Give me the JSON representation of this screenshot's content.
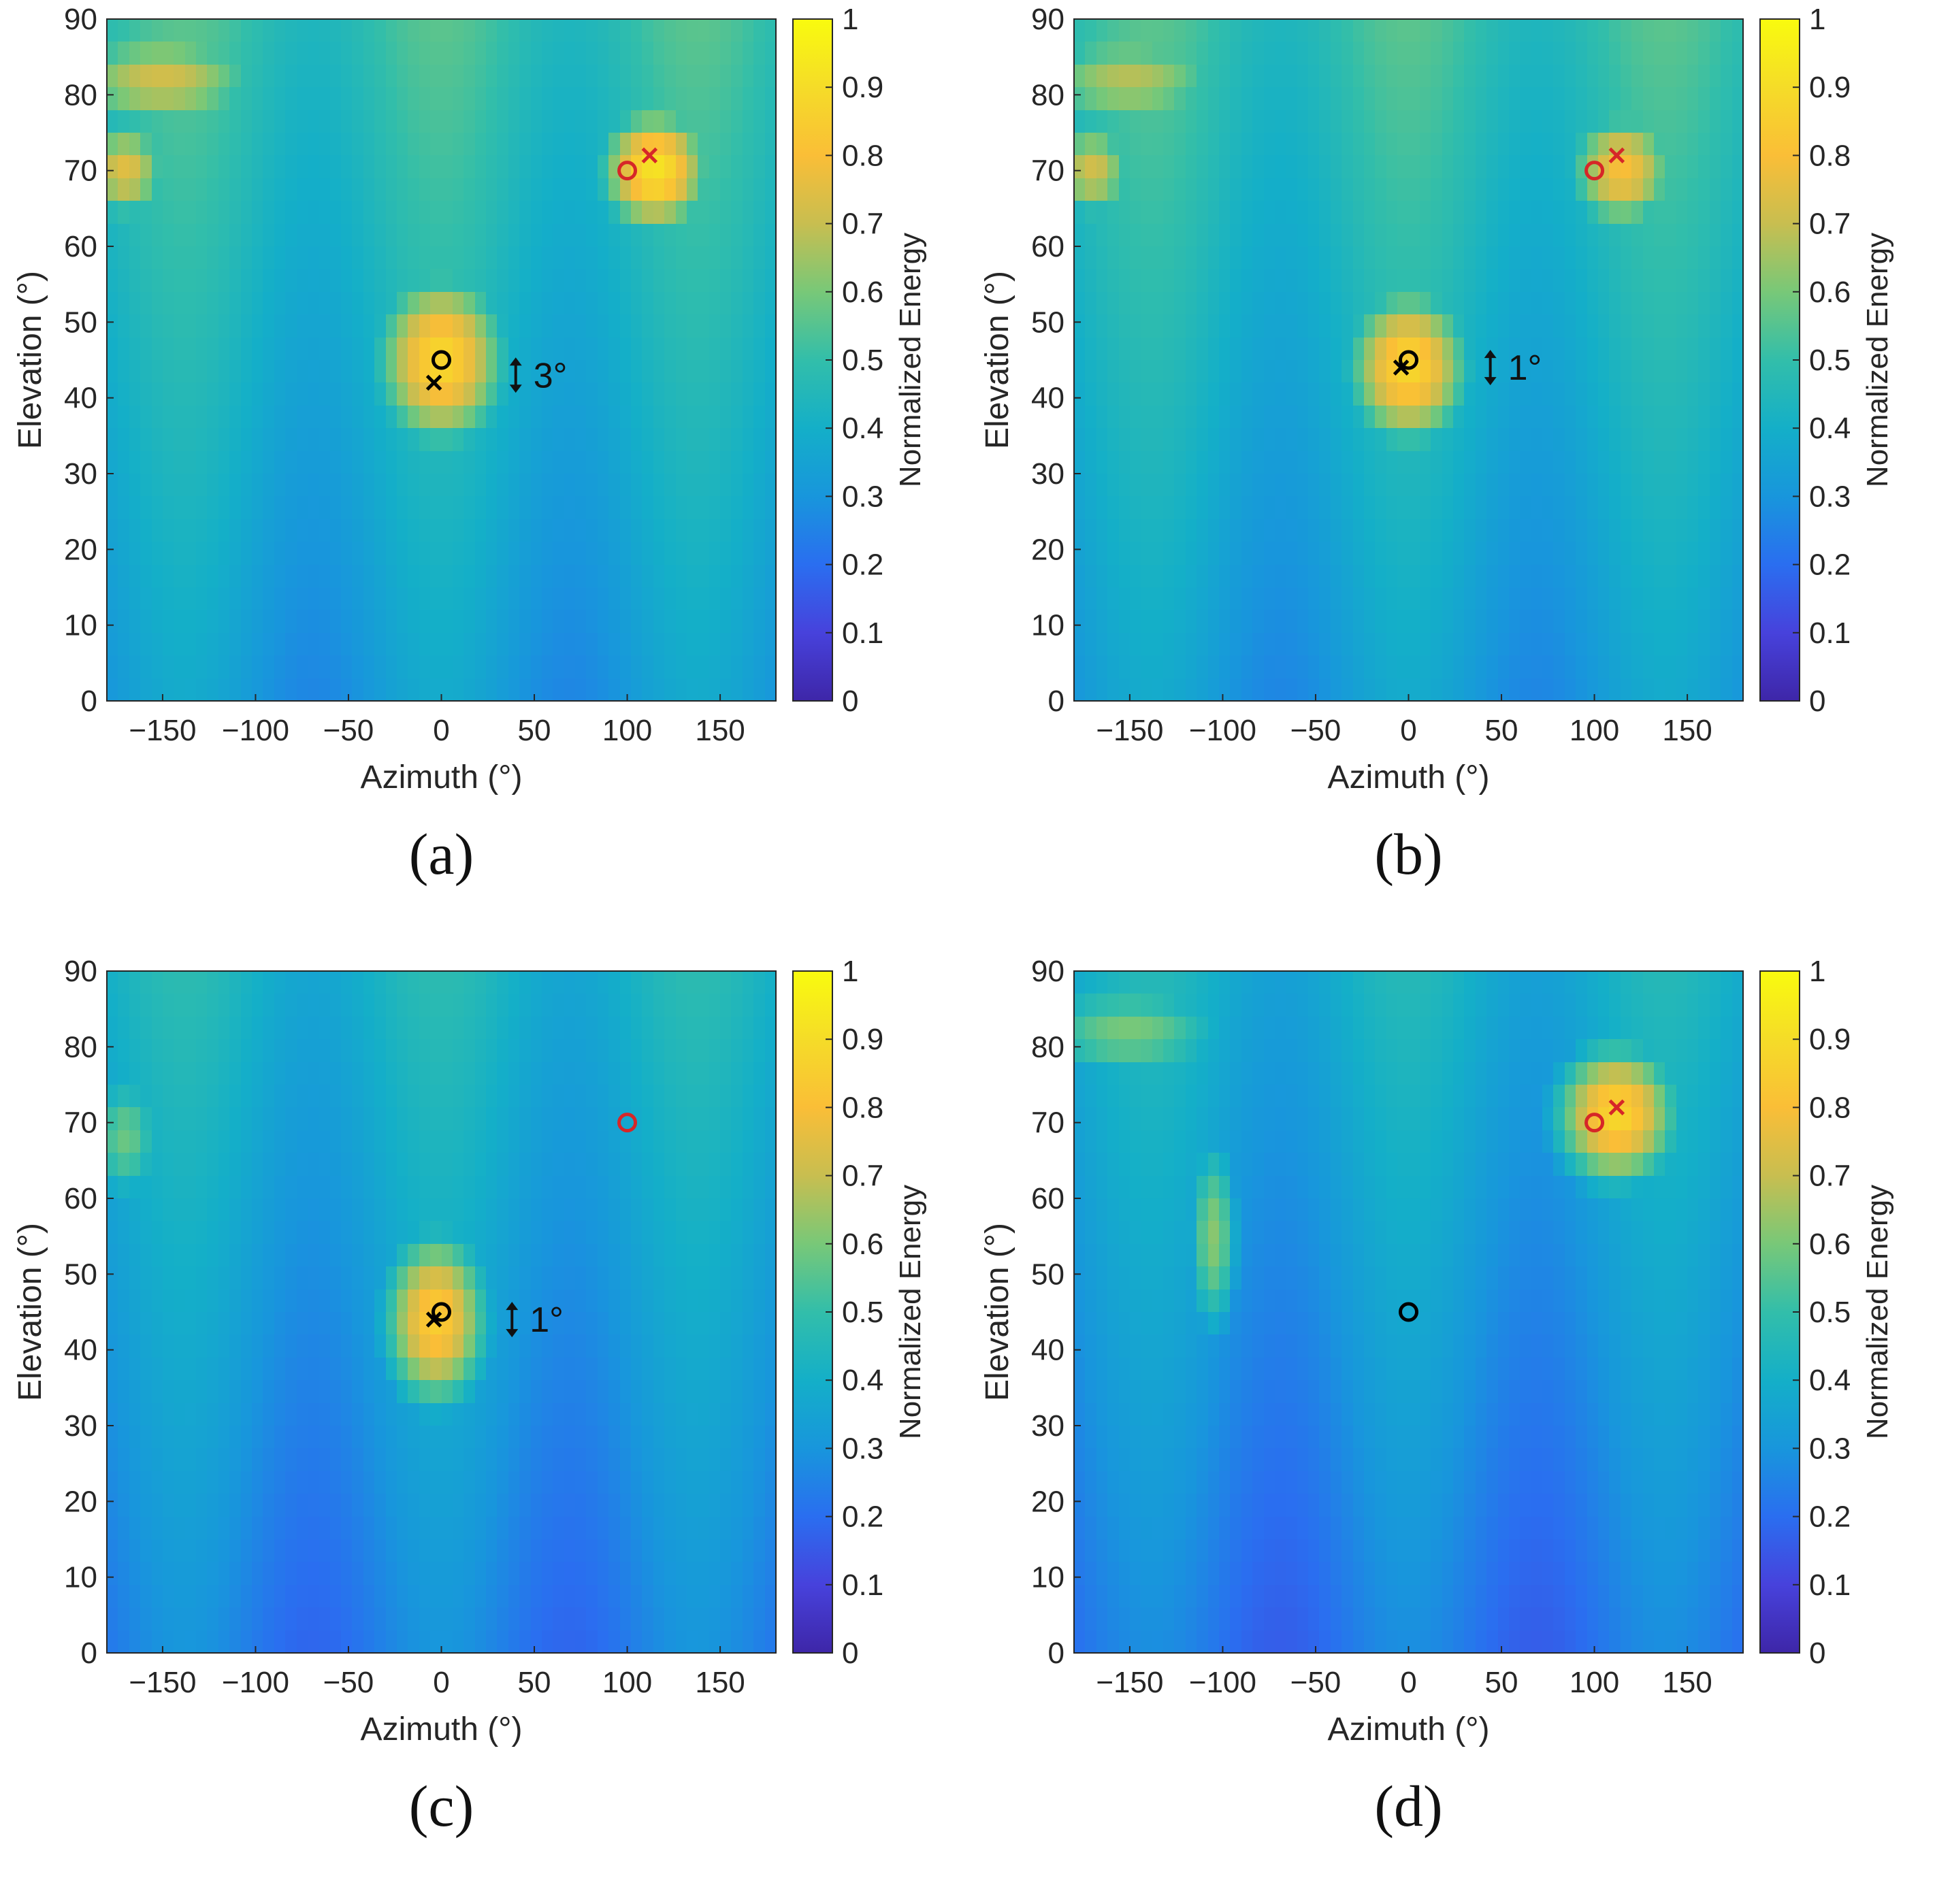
{
  "chart_data": [
    {
      "type": "heatmap",
      "panel": "a",
      "caption": "(a)",
      "xlabel": "Azimuth (°)",
      "ylabel": "Elevation (°)",
      "xlim": [
        -180,
        180
      ],
      "ylim": [
        0,
        90
      ],
      "xticks": [
        -150,
        -100,
        -50,
        0,
        50,
        100,
        150
      ],
      "yticks": [
        0,
        10,
        20,
        30,
        40,
        50,
        60,
        70,
        80,
        90
      ],
      "colorbar": {
        "label": "Normalized Energy",
        "range": [
          0,
          1
        ],
        "ticks": [
          0,
          0.1,
          0.2,
          0.3,
          0.4,
          0.5,
          0.6,
          0.7,
          0.8,
          0.9,
          1
        ]
      },
      "background_level": 0.5,
      "hotspots": [
        {
          "az": 0,
          "el": 45,
          "amp": 0.88,
          "saz": 30,
          "sel": 10
        },
        {
          "az": 115,
          "el": 70,
          "amp": 0.92,
          "saz": 25,
          "sel": 7
        },
        {
          "az": -170,
          "el": 70,
          "amp": 0.75,
          "saz": 20,
          "sel": 6
        },
        {
          "az": -150,
          "el": 82,
          "amp": 0.72,
          "saz": 50,
          "sel": 6
        }
      ],
      "markers": [
        {
          "shape": "circle",
          "color": "#000000",
          "az": 0,
          "el": 45
        },
        {
          "shape": "cross",
          "color": "#000000",
          "az": -4,
          "el": 42
        },
        {
          "shape": "circle",
          "color": "#d62728",
          "az": 100,
          "el": 70
        },
        {
          "shape": "cross",
          "color": "#d62728",
          "az": 112,
          "el": 72
        }
      ],
      "annotation": {
        "text": "3°",
        "az": 40,
        "el": 43
      }
    },
    {
      "type": "heatmap",
      "panel": "b",
      "caption": "(b)",
      "xlabel": "Azimuth (°)",
      "ylabel": "Elevation (°)",
      "xlim": [
        -180,
        180
      ],
      "ylim": [
        0,
        90
      ],
      "xticks": [
        -150,
        -100,
        -50,
        0,
        50,
        100,
        150
      ],
      "yticks": [
        0,
        10,
        20,
        30,
        40,
        50,
        60,
        70,
        80,
        90
      ],
      "colorbar": {
        "label": "Normalized Energy",
        "range": [
          0,
          1
        ],
        "ticks": [
          0,
          0.1,
          0.2,
          0.3,
          0.4,
          0.5,
          0.6,
          0.7,
          0.8,
          0.9,
          1
        ]
      },
      "background_level": 0.5,
      "hotspots": [
        {
          "az": 0,
          "el": 44,
          "amp": 0.88,
          "saz": 28,
          "sel": 9
        },
        {
          "az": 115,
          "el": 70,
          "amp": 0.8,
          "saz": 25,
          "sel": 7
        },
        {
          "az": -170,
          "el": 70,
          "amp": 0.72,
          "saz": 20,
          "sel": 6
        },
        {
          "az": -150,
          "el": 82,
          "amp": 0.68,
          "saz": 50,
          "sel": 6
        }
      ],
      "markers": [
        {
          "shape": "circle",
          "color": "#000000",
          "az": 0,
          "el": 45
        },
        {
          "shape": "cross",
          "color": "#000000",
          "az": -4,
          "el": 44
        },
        {
          "shape": "circle",
          "color": "#d62728",
          "az": 100,
          "el": 70
        },
        {
          "shape": "cross",
          "color": "#d62728",
          "az": 112,
          "el": 72
        }
      ],
      "annotation": {
        "text": "1°",
        "az": 44,
        "el": 44
      }
    },
    {
      "type": "heatmap",
      "panel": "c",
      "caption": "(c)",
      "xlabel": "Azimuth (°)",
      "ylabel": "Elevation (°)",
      "xlim": [
        -180,
        180
      ],
      "ylim": [
        0,
        90
      ],
      "xticks": [
        -150,
        -100,
        -50,
        0,
        50,
        100,
        150
      ],
      "yticks": [
        0,
        10,
        20,
        30,
        40,
        50,
        60,
        70,
        80,
        90
      ],
      "colorbar": {
        "label": "Normalized Energy",
        "range": [
          0,
          1
        ],
        "ticks": [
          0,
          0.1,
          0.2,
          0.3,
          0.4,
          0.5,
          0.6,
          0.7,
          0.8,
          0.9,
          1
        ]
      },
      "background_level": 0.42,
      "hotspots": [
        {
          "az": -3,
          "el": 44,
          "amp": 0.85,
          "saz": 24,
          "sel": 10
        },
        {
          "az": -170,
          "el": 68,
          "amp": 0.58,
          "saz": 18,
          "sel": 8
        }
      ],
      "markers": [
        {
          "shape": "circle",
          "color": "#000000",
          "az": 0,
          "el": 45
        },
        {
          "shape": "cross",
          "color": "#000000",
          "az": -4,
          "el": 44
        },
        {
          "shape": "circle",
          "color": "#d62728",
          "az": 100,
          "el": 70
        }
      ],
      "annotation": {
        "text": "1°",
        "az": 38,
        "el": 44
      }
    },
    {
      "type": "heatmap",
      "panel": "d",
      "caption": "(d)",
      "xlabel": "Azimuth (°)",
      "ylabel": "Elevation (°)",
      "xlim": [
        -180,
        180
      ],
      "ylim": [
        0,
        90
      ],
      "xticks": [
        -150,
        -100,
        -50,
        0,
        50,
        100,
        150
      ],
      "yticks": [
        0,
        10,
        20,
        30,
        40,
        50,
        60,
        70,
        80,
        90
      ],
      "colorbar": {
        "label": "Normalized Energy",
        "range": [
          0,
          1
        ],
        "ticks": [
          0,
          0.1,
          0.2,
          0.3,
          0.4,
          0.5,
          0.6,
          0.7,
          0.8,
          0.9,
          1
        ]
      },
      "background_level": 0.4,
      "hotspots": [
        {
          "az": 112,
          "el": 71,
          "amp": 0.88,
          "saz": 28,
          "sel": 8
        },
        {
          "az": -105,
          "el": 55,
          "amp": 0.62,
          "saz": 12,
          "sel": 12
        },
        {
          "az": -150,
          "el": 82,
          "amp": 0.6,
          "saz": 50,
          "sel": 6
        }
      ],
      "markers": [
        {
          "shape": "circle",
          "color": "#000000",
          "az": 0,
          "el": 45
        },
        {
          "shape": "circle",
          "color": "#d62728",
          "az": 100,
          "el": 70
        },
        {
          "shape": "cross",
          "color": "#d62728",
          "az": 112,
          "el": 72
        }
      ]
    }
  ]
}
